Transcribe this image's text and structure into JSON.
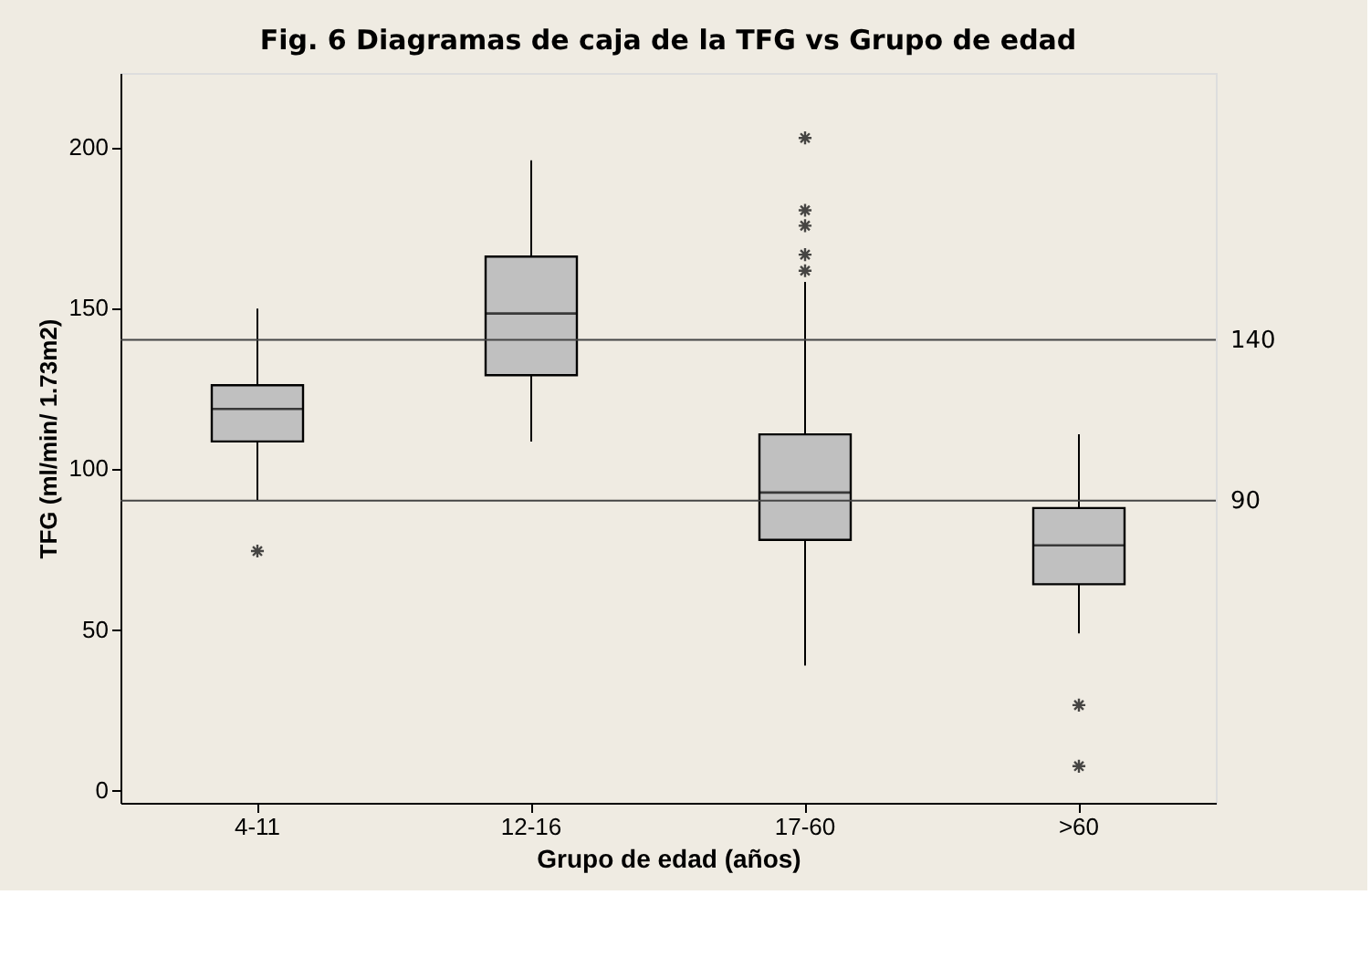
{
  "chart_data": {
    "type": "box",
    "title": "Fig. 6 Diagramas de caja de la  TFG vs Grupo de edad",
    "xlabel": "Grupo de edad (años)",
    "ylabel": "TFG (ml/min/ 1.73m2)",
    "categories": [
      "4-11",
      "12-16",
      "17-60",
      ">60"
    ],
    "color": "#c0c0c0",
    "boxes": [
      {
        "low": 90,
        "q1": 108.4,
        "median": 118.5,
        "q3": 125.9,
        "high": 149.7,
        "outliers": [
          74.3
        ]
      },
      {
        "low": 108.4,
        "q1": 129,
        "median": 148.2,
        "q3": 165.9,
        "high": 195.8
      },
      {
        "low": 38.7,
        "q1": 77.8,
        "median": 92.5,
        "q3": 110.6,
        "high": 158,
        "outliers": [
          202.8,
          180.3,
          175.5,
          166.5,
          161.5
        ]
      },
      {
        "low": 48.7,
        "q1": 64,
        "median": 76.1,
        "q3": 87.7,
        "high": 110.6,
        "outliers": [
          26.4,
          7.4
        ]
      }
    ],
    "ylim": [
      -4,
      223
    ],
    "yticks": [
      0,
      50,
      100,
      150,
      200
    ],
    "ref_lines": [
      {
        "axis": "y",
        "value": 140,
        "label": "140"
      },
      {
        "axis": "y",
        "value": 90,
        "label": "90"
      }
    ],
    "grid": false
  }
}
